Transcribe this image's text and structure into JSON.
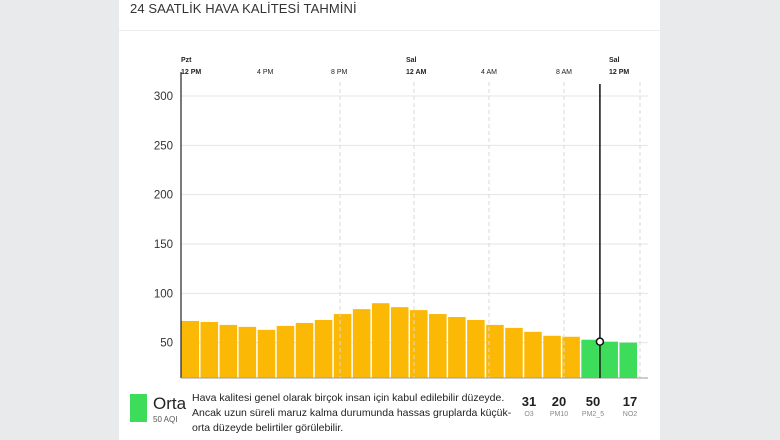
{
  "card": {
    "title": "24 SAATLİK HAVA KALİTESİ TAHMİNİ"
  },
  "chart_data": {
    "type": "bar",
    "y_ticks": [
      "300",
      "250",
      "200",
      "150",
      "100",
      "50"
    ],
    "ylim": [
      0,
      300
    ],
    "x_ticks": [
      {
        "day": "Pzt",
        "time": "12 PM"
      },
      {
        "day": "",
        "time": "4 PM"
      },
      {
        "day": "",
        "time": "8 PM"
      },
      {
        "day": "Sal",
        "time": "12 AM"
      },
      {
        "day": "",
        "time": "4 AM"
      },
      {
        "day": "",
        "time": "8 AM"
      },
      {
        "day": "Sal",
        "time": "12 PM"
      }
    ],
    "values": [
      72,
      71,
      68,
      66,
      63,
      67,
      70,
      73,
      79,
      84,
      90,
      86,
      83,
      79,
      76,
      73,
      68,
      65,
      61,
      57,
      56,
      53,
      51,
      50
    ],
    "colors": {
      "orange": "#fbb906",
      "green": "#3ddc5a"
    },
    "green_from_index": 21,
    "cursor_index": 22
  },
  "current": {
    "level_name": "Orta",
    "aqi_label": "50 AQI",
    "color": "#3ddc5a",
    "description": "Hava kalitesi genel olarak birçok insan için kabul edilebilir düzeyde. Ancak uzun süreli maruz kalma durumunda hassas gruplarda küçük-orta düzeyde belirtiler görülebilir."
  },
  "pollutants": [
    {
      "value": "31",
      "name": "O3"
    },
    {
      "value": "20",
      "name": "PM10"
    },
    {
      "value": "50",
      "name": "PM2_5"
    },
    {
      "value": "17",
      "name": "NO2"
    }
  ]
}
